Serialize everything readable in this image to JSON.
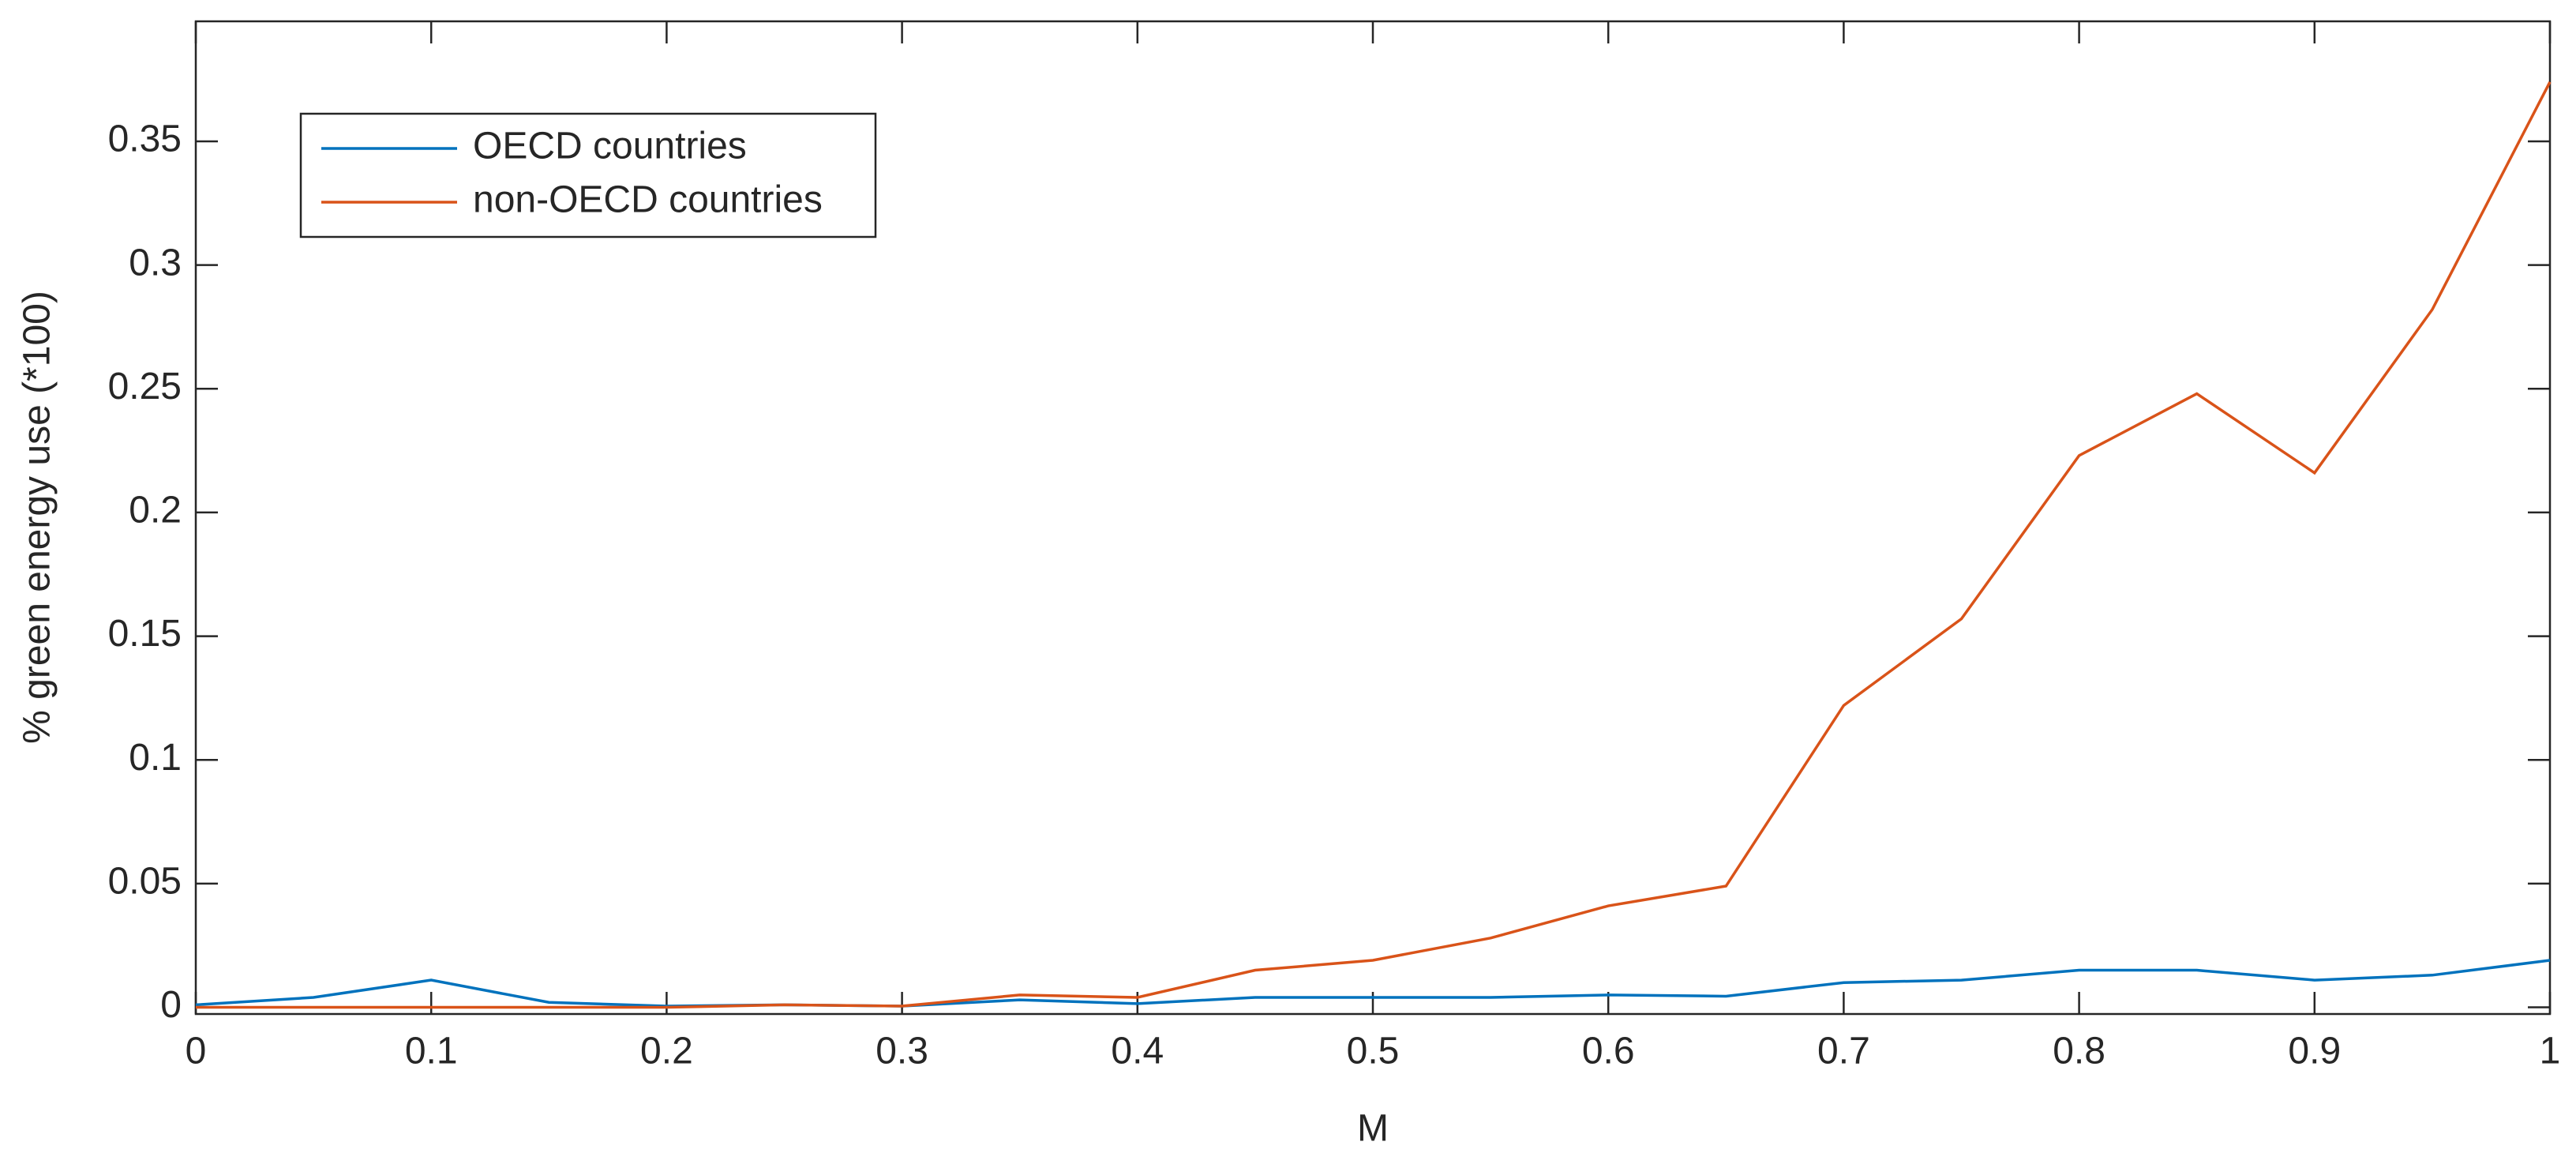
{
  "chart_data": {
    "type": "line",
    "xlabel": "M",
    "ylabel": "% green energy use (*100)",
    "x": [
      0,
      0.05,
      0.1,
      0.15,
      0.2,
      0.25,
      0.3,
      0.35,
      0.4,
      0.45,
      0.5,
      0.55,
      0.6,
      0.65,
      0.7,
      0.75,
      0.8,
      0.85,
      0.9,
      0.95,
      1
    ],
    "series": [
      {
        "name": "OECD countries",
        "color": "#0072bd",
        "values": [
          0.001,
          0.004,
          0.011,
          0.002,
          0.0005,
          0.001,
          0.0005,
          0.003,
          0.0015,
          0.004,
          0.004,
          0.004,
          0.005,
          0.0045,
          0.01,
          0.011,
          0.015,
          0.015,
          0.011,
          0.013,
          0.019
        ]
      },
      {
        "name": "non-OECD countries",
        "color": "#d95319",
        "values": [
          0,
          0,
          0,
          0,
          0,
          0.001,
          0.0005,
          0.005,
          0.004,
          0.015,
          0.019,
          0.028,
          0.041,
          0.049,
          0.122,
          0.157,
          0.223,
          0.248,
          0.216,
          0.282,
          0.374
        ]
      }
    ],
    "xlim": [
      0,
      1
    ],
    "xticks": [
      0,
      0.1,
      0.2,
      0.3,
      0.4,
      0.5,
      0.6,
      0.7,
      0.8,
      0.9,
      1
    ],
    "ylim": [
      -0.0027,
      0.3985
    ],
    "yticks": [
      0,
      0.05,
      0.1,
      0.15,
      0.2,
      0.25,
      0.3,
      0.35
    ],
    "grid": false,
    "legend": "upper left"
  }
}
